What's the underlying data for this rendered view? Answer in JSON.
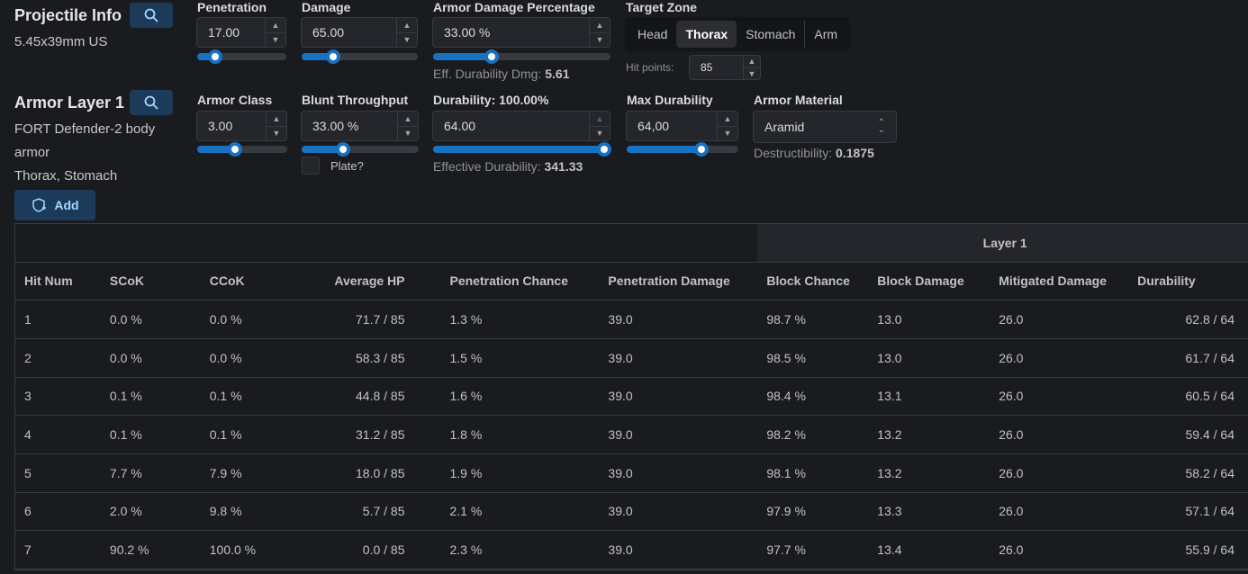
{
  "projectile": {
    "title": "Projectile Info",
    "ammo": "5.45x39mm US",
    "penetration": {
      "label": "Penetration",
      "value": "17.00",
      "slider": 0.2
    },
    "damage": {
      "label": "Damage",
      "value": "65.00",
      "slider": 0.27
    },
    "armor_damage_pct": {
      "label": "Armor Damage Percentage",
      "value": "33.00 %",
      "slider": 0.33
    },
    "eff_durability_dmg": {
      "label": "Eff. Durability Dmg:",
      "value": "5.61"
    },
    "target_zone": {
      "label": "Target Zone",
      "options": [
        "Head",
        "Thorax",
        "Stomach",
        "Arm"
      ],
      "selected": "Thorax"
    },
    "hit_points": {
      "label": "Hit points:",
      "value": "85"
    }
  },
  "armor": {
    "title": "Armor Layer 1",
    "name": "FORT Defender-2 body armor",
    "zones": "Thorax, Stomach",
    "add_label": "Add",
    "armor_class": {
      "label": "Armor Class",
      "value": "3.00",
      "slider": 0.42
    },
    "blunt_throughput": {
      "label": "Blunt Throughput",
      "value": "33.00 %",
      "slider": 0.35
    },
    "plate_label": "Plate?",
    "durability": {
      "label": "Durability:",
      "percent": "100.00%",
      "value": "64.00",
      "slider": 1.0
    },
    "effective_durability": {
      "label": "Effective Durability:",
      "value": "341.33"
    },
    "max_durability": {
      "label": "Max Durability",
      "value": "64,00",
      "slider": 0.67
    },
    "material": {
      "label": "Armor Material",
      "value": "Aramid"
    },
    "destructibility": {
      "label": "Destructibility:",
      "value": "0.1875"
    }
  },
  "table": {
    "group_label": "Layer 1",
    "headers": [
      "Hit Num",
      "SCoK",
      "CCoK",
      "Average HP",
      "Penetration Chance",
      "Penetration Damage",
      "Block Chance",
      "Block Damage",
      "Mitigated Damage",
      "Durability"
    ],
    "rows": [
      [
        "1",
        "0.0 %",
        "0.0 %",
        "71.7 / 85",
        "1.3 %",
        "39.0",
        "98.7 %",
        "13.0",
        "26.0",
        "62.8 / 64"
      ],
      [
        "2",
        "0.0 %",
        "0.0 %",
        "58.3 / 85",
        "1.5 %",
        "39.0",
        "98.5 %",
        "13.0",
        "26.0",
        "61.7 / 64"
      ],
      [
        "3",
        "0.1 %",
        "0.1 %",
        "44.8 / 85",
        "1.6 %",
        "39.0",
        "98.4 %",
        "13.1",
        "26.0",
        "60.5 / 64"
      ],
      [
        "4",
        "0.1 %",
        "0.1 %",
        "31.2 / 85",
        "1.8 %",
        "39.0",
        "98.2 %",
        "13.2",
        "26.0",
        "59.4 / 64"
      ],
      [
        "5",
        "7.7 %",
        "7.9 %",
        "18.0 / 85",
        "1.9 %",
        "39.0",
        "98.1 %",
        "13.2",
        "26.0",
        "58.2 / 64"
      ],
      [
        "6",
        "2.0 %",
        "9.8 %",
        "5.7 / 85",
        "2.1 %",
        "39.0",
        "97.9 %",
        "13.3",
        "26.0",
        "57.1 / 64"
      ],
      [
        "7",
        "90.2 %",
        "100.0 %",
        "0.0 / 85",
        "2.3 %",
        "39.0",
        "97.7 %",
        "13.4",
        "26.0",
        "55.9 / 64"
      ]
    ]
  }
}
